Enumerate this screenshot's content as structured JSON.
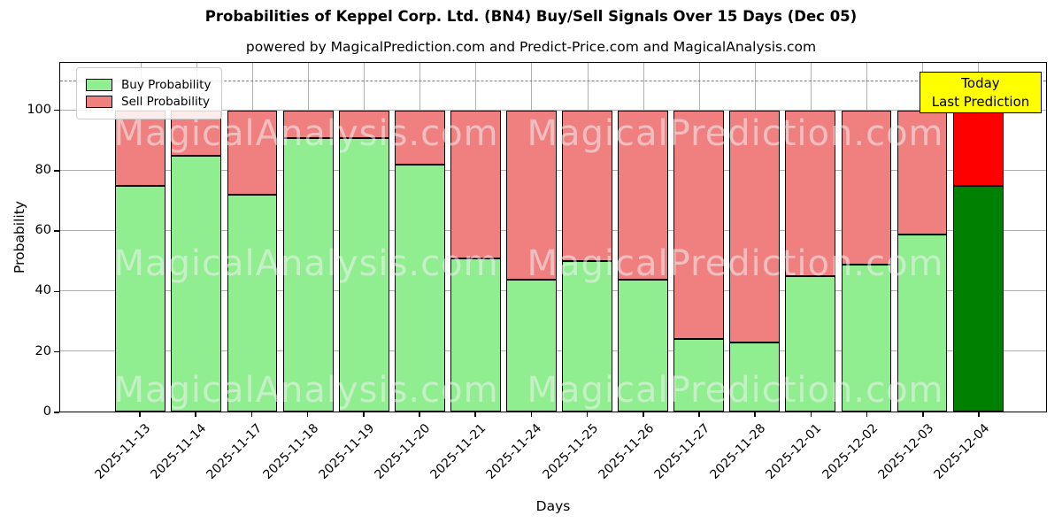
{
  "title": "Probabilities of Keppel Corp. Ltd. (BN4) Buy/Sell Signals Over 15 Days (Dec 05)",
  "subtitle": "powered by MagicalPrediction.com and Predict-Price.com and MagicalAnalysis.com",
  "legend": {
    "buy_label": "Buy Probability",
    "sell_label": "Sell Probability"
  },
  "annotation_box": {
    "line1": "Today",
    "line2": "Last Prediction"
  },
  "watermarks": {
    "left_text": "MagicalAnalysis.com",
    "right_text": "MagicalPrediction.com"
  },
  "colors": {
    "buy": "#90EE90",
    "sell": "#F08080",
    "today_buy": "#008000",
    "today_sell": "#FF0000",
    "today_box_bg": "#FFFF00",
    "grid": "#B0B0B0",
    "dashed_line": "#7F7F7F",
    "bar_edge": "#000000"
  },
  "chart_data": {
    "type": "bar",
    "stacked": true,
    "title": "Probabilities of Keppel Corp. Ltd. (BN4) Buy/Sell Signals Over 15 Days (Dec 05)",
    "xlabel": "Days",
    "ylabel": "Probability",
    "categories": [
      "2025-11-13",
      "2025-11-14",
      "2025-11-17",
      "2025-11-18",
      "2025-11-19",
      "2025-11-20",
      "2025-11-21",
      "2025-11-24",
      "2025-11-25",
      "2025-11-26",
      "2025-11-27",
      "2025-11-28",
      "2025-12-01",
      "2025-12-02",
      "2025-12-03",
      "2025-12-04"
    ],
    "series": [
      {
        "name": "Buy Probability",
        "color": "#90EE90",
        "values": [
          75,
          85,
          72,
          91,
          91,
          82,
          51,
          44,
          50,
          44,
          24,
          23,
          45,
          49,
          59,
          75
        ]
      },
      {
        "name": "Sell Probability",
        "color": "#F08080",
        "values": [
          25,
          15,
          28,
          9,
          9,
          18,
          49,
          56,
          50,
          56,
          76,
          77,
          55,
          51,
          41,
          25
        ]
      }
    ],
    "today_bar": {
      "index": 15,
      "buy_color": "#008000",
      "sell_color": "#FF0000",
      "label": "Today / Last Prediction"
    },
    "yticks": [
      0,
      20,
      40,
      60,
      80,
      100
    ],
    "ylim": [
      0,
      116
    ],
    "dashed_line_y": 110,
    "grid": true,
    "legend_position": "upper left"
  }
}
